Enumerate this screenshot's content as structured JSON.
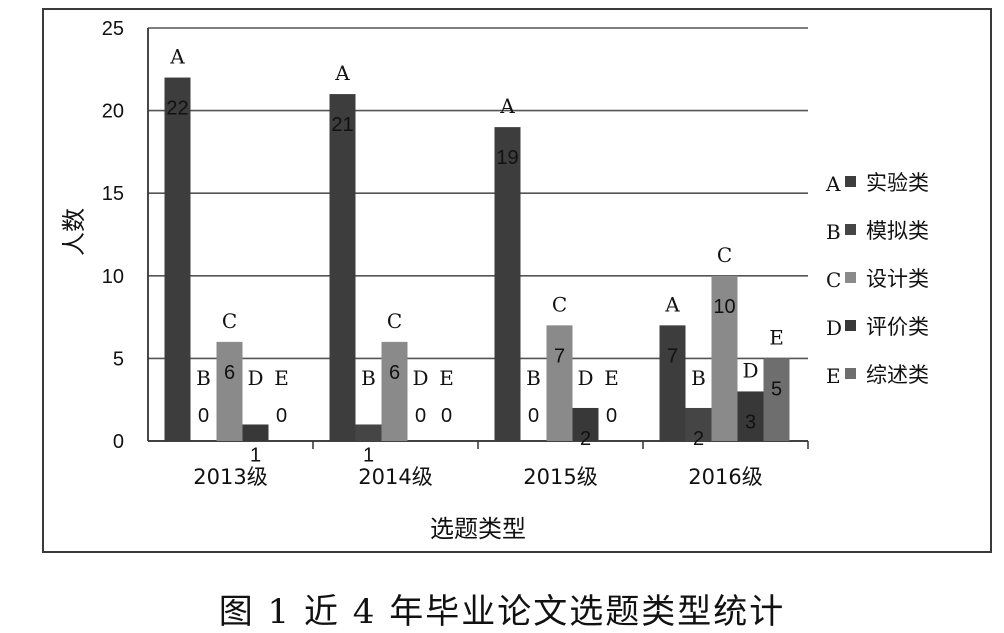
{
  "chart_data": {
    "type": "bar",
    "ylabel": "人数",
    "xlabel": "选题类型",
    "ylim": [
      0,
      25
    ],
    "yticks": [
      0,
      5,
      10,
      15,
      20,
      25
    ],
    "grid": true,
    "legend_position": "right",
    "categories": [
      "2013级",
      "2014级",
      "2015级",
      "2016级"
    ],
    "series": [
      {
        "name": "实验类",
        "letter": "A",
        "color": "#3d3d3d",
        "values": [
          22,
          21,
          19,
          7
        ]
      },
      {
        "name": "模拟类",
        "letter": "B",
        "color": "#454545",
        "values": [
          0,
          1,
          0,
          2
        ]
      },
      {
        "name": "设计类",
        "letter": "C",
        "color": "#8a8a8a",
        "values": [
          6,
          6,
          7,
          10
        ]
      },
      {
        "name": "评价类",
        "letter": "D",
        "color": "#383838",
        "values": [
          1,
          0,
          2,
          3
        ]
      },
      {
        "name": "综述类",
        "letter": "E",
        "color": "#6e6e6e",
        "values": [
          0,
          0,
          0,
          5
        ]
      }
    ]
  },
  "caption": "图 1  近 4 年毕业论文选题类型统计"
}
